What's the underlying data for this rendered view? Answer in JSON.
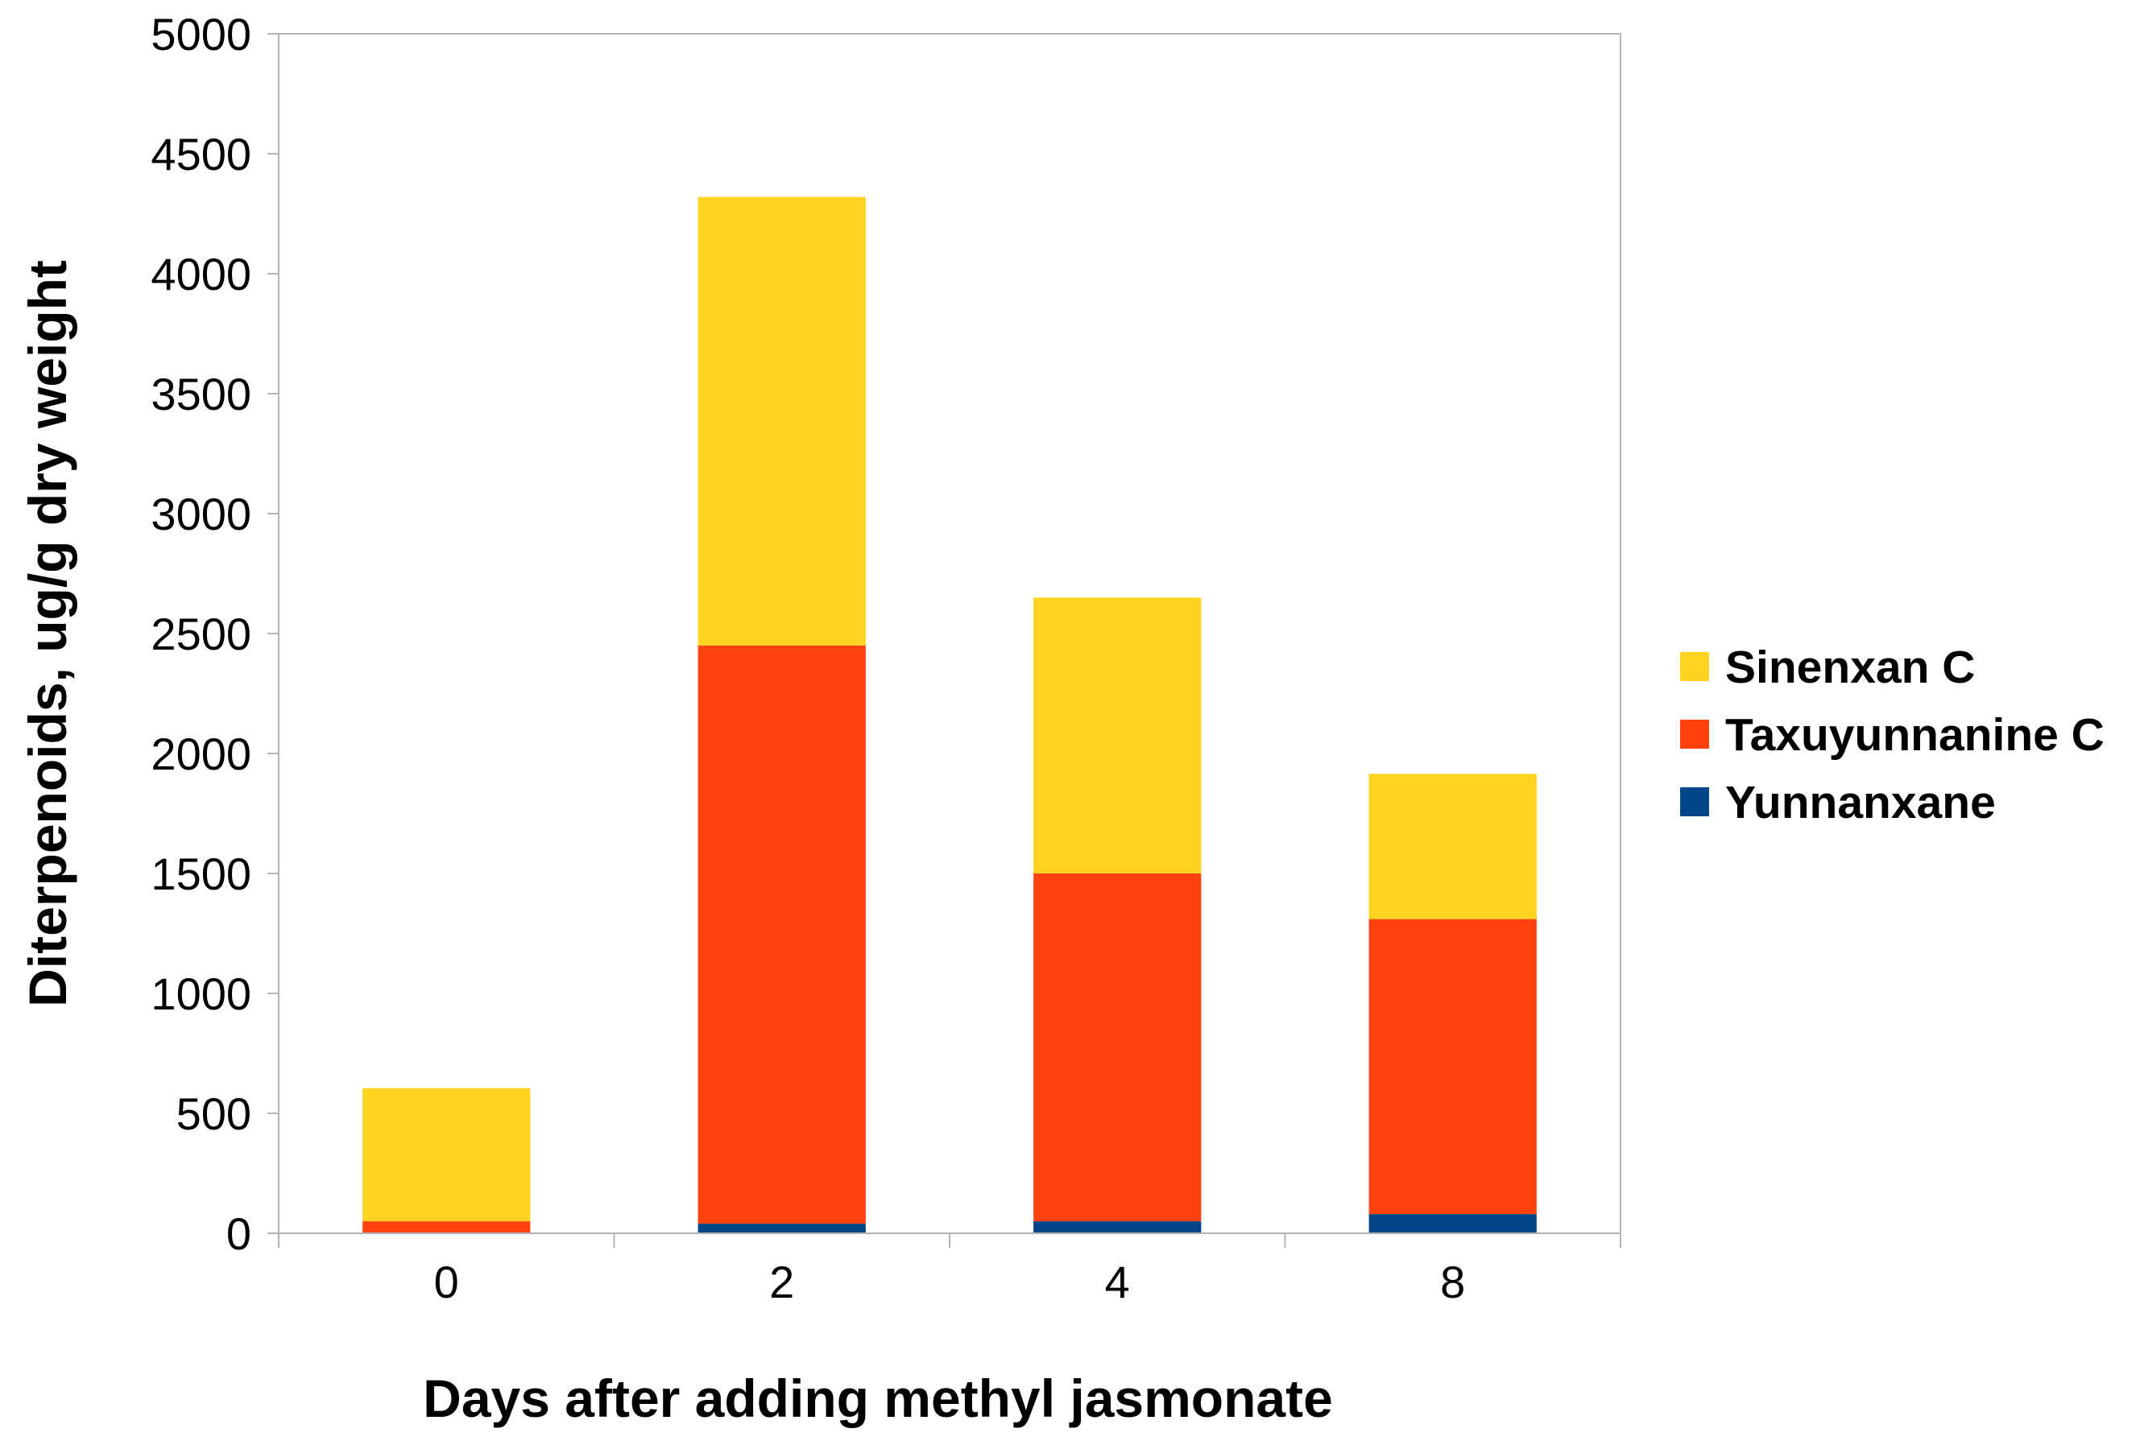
{
  "chart_data": {
    "type": "bar",
    "stacked": true,
    "categories": [
      "0",
      "2",
      "4",
      "8"
    ],
    "series": [
      {
        "name": "Yunnanxane",
        "values": [
          0,
          40,
          50,
          80
        ],
        "color": "#004586"
      },
      {
        "name": "Taxuyunnanine C",
        "values": [
          50,
          2410,
          1450,
          1230
        ],
        "color": "#ff420e"
      },
      {
        "name": "Sinenxan C",
        "values": [
          555,
          1870,
          1150,
          605
        ],
        "color": "#ffd320"
      }
    ],
    "legend_order": [
      "Sinenxan C",
      "Taxuyunnanine C",
      "Yunnanxane"
    ],
    "legend_position": "right",
    "title": "",
    "xlabel": "Days after adding methyl jasmonate",
    "ylabel": "Diterpenoids, ug/g dry weight",
    "ylim": [
      0,
      5000
    ],
    "yticks": [
      0,
      500,
      1000,
      1500,
      2000,
      2500,
      3000,
      3500,
      4000,
      4500,
      5000
    ],
    "grid": false
  }
}
